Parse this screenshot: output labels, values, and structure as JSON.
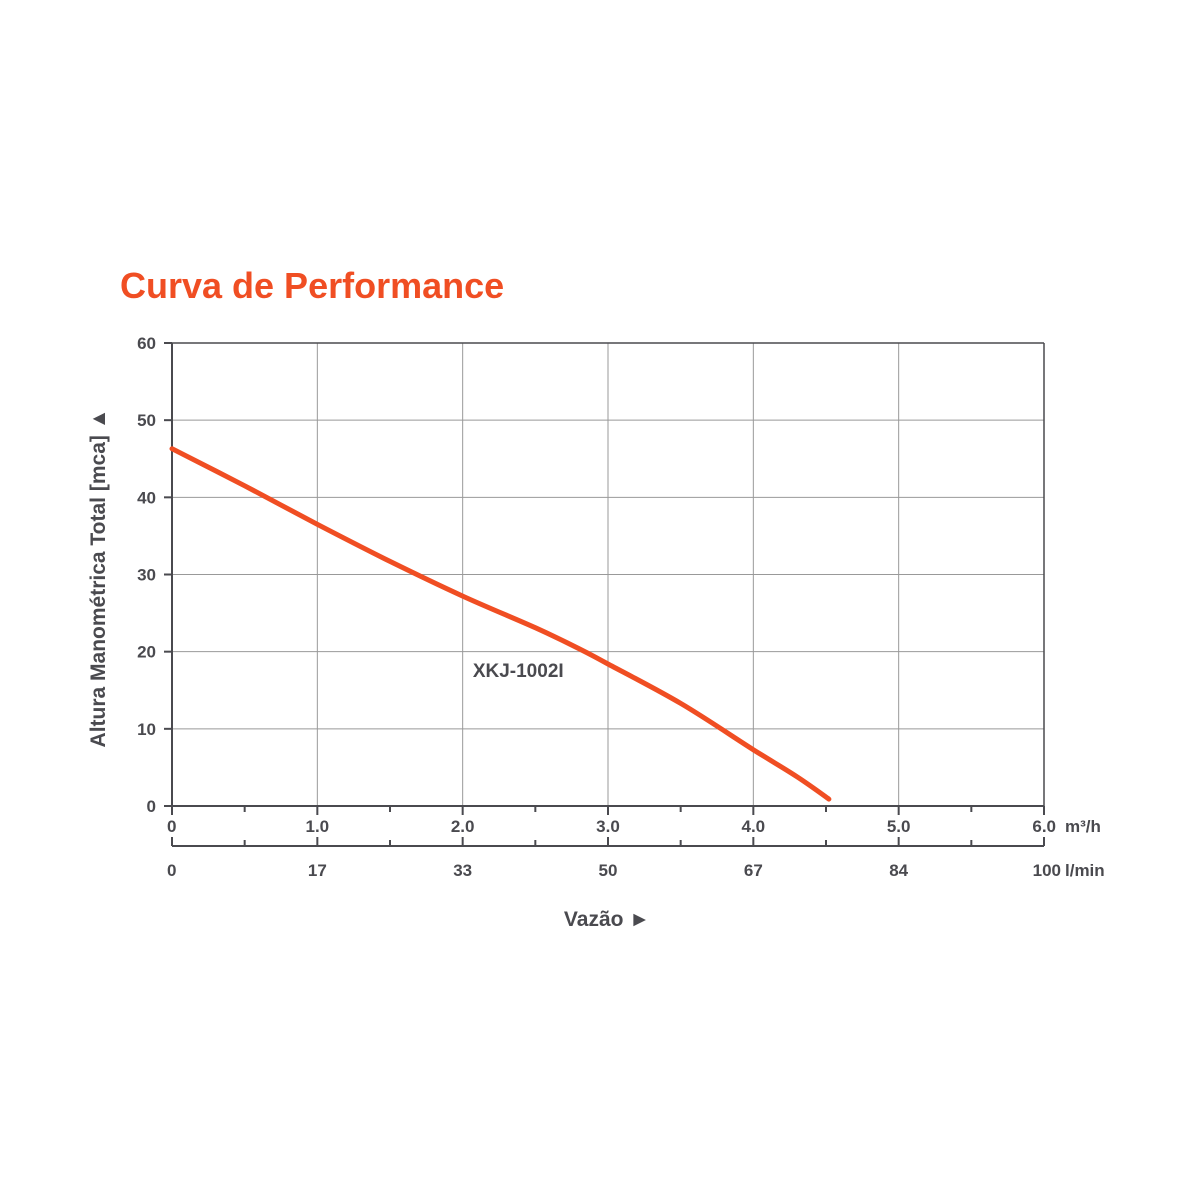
{
  "chart_data": {
    "type": "line",
    "title": "Curva de Performance",
    "ylabel": "Altura Manométrica Total [mca] ▲",
    "xlabel": "Vazão ►",
    "ylim": [
      0,
      60
    ],
    "yticks": [
      "0",
      "10",
      "20",
      "30",
      "40",
      "50",
      "60"
    ],
    "xlim": [
      0,
      6
    ],
    "xticks_primary": [
      "0",
      "1.0",
      "2.0",
      "3.0",
      "4.0",
      "5.0",
      "6.0"
    ],
    "x_unit_primary": "m³/h",
    "xticks_secondary": [
      "0",
      "17",
      "33",
      "50",
      "67",
      "84",
      "100"
    ],
    "x_unit_secondary": "l/min",
    "grid": true,
    "series": [
      {
        "name": "XKJ-1002I",
        "x": [
          0,
          0.5,
          1.0,
          1.5,
          2.0,
          2.5,
          2.8,
          3.0,
          3.5,
          4.0,
          4.3,
          4.52
        ],
        "y": [
          46.3,
          41.5,
          36.5,
          31.7,
          27.2,
          23.1,
          20.4,
          18.4,
          13.3,
          7.3,
          3.8,
          0.9
        ]
      }
    ],
    "colors": {
      "series": "#f04e23",
      "title": "#f04e23",
      "grid": "#999999",
      "axis": "#4a4a4f"
    }
  }
}
